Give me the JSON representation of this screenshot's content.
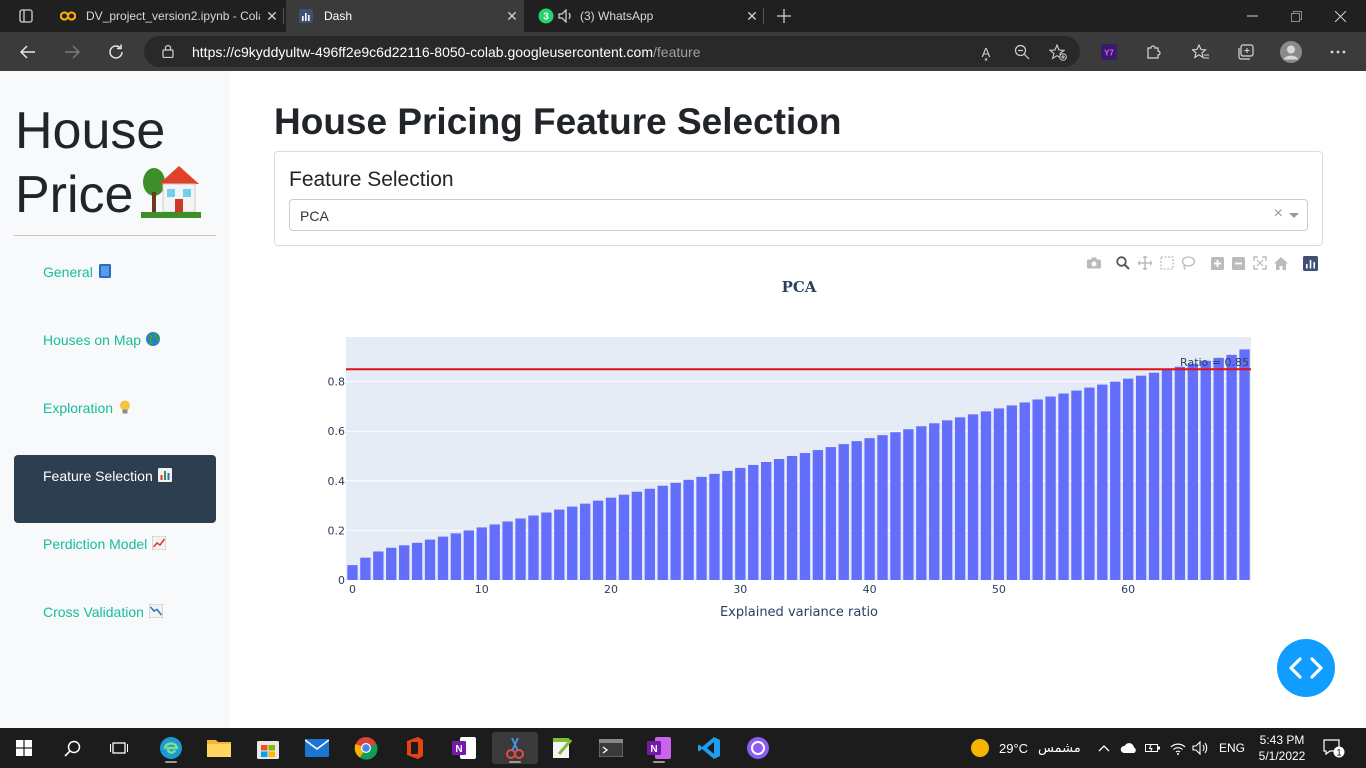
{
  "browser": {
    "tabs": [
      {
        "label": "DV_project_version2.ipynb - Cola",
        "icon": "colab-icon",
        "color": "#f9ab00"
      },
      {
        "label": "Dash",
        "icon": "dash-icon",
        "color": "#6f88c7"
      },
      {
        "label": "(3) WhatsApp",
        "icon": "whatsapp-icon",
        "color": "#25d366",
        "badge": "3"
      }
    ],
    "url_host": "https://c9kyddyultw-496ff2e9c6d22116-8050-colab.googleusercontent.com",
    "url_path": "/feature",
    "read_aloud": "A͓"
  },
  "sidebar": {
    "brand_line1": "House",
    "brand_line2": "Price",
    "items": [
      {
        "label": "General"
      },
      {
        "label": "Houses on Map"
      },
      {
        "label": "Exploration"
      },
      {
        "label": "Feature Selection",
        "active": true
      },
      {
        "label": "Perdiction Model"
      },
      {
        "label": "Cross Validation"
      }
    ]
  },
  "main": {
    "title": "House Pricing Feature Selection",
    "card_title": "Feature Selection",
    "dropdown_value": "PCA",
    "dropdown_clear": "×"
  },
  "chart_data": {
    "type": "bar",
    "title": "PCA",
    "xlabel": "Explained variance ratio",
    "ylabel": "",
    "xlim": [
      -0.5,
      69.5
    ],
    "ylim": [
      0,
      0.98
    ],
    "xticks": [
      0,
      10,
      20,
      30,
      40,
      50,
      60
    ],
    "yticks": [
      0,
      0.2,
      0.4,
      0.6,
      0.8
    ],
    "ytick_labels": [
      "0",
      "0.2",
      "0.4",
      "0.6",
      "0.8"
    ],
    "bar_color": "#636efa",
    "plot_bg": "#e5ecf6",
    "values": [
      0.06,
      0.09,
      0.115,
      0.13,
      0.14,
      0.15,
      0.163,
      0.175,
      0.188,
      0.2,
      0.212,
      0.224,
      0.236,
      0.248,
      0.26,
      0.272,
      0.284,
      0.296,
      0.308,
      0.32,
      0.332,
      0.344,
      0.356,
      0.368,
      0.38,
      0.392,
      0.404,
      0.416,
      0.428,
      0.44,
      0.452,
      0.464,
      0.476,
      0.488,
      0.5,
      0.512,
      0.524,
      0.536,
      0.548,
      0.56,
      0.572,
      0.584,
      0.596,
      0.608,
      0.62,
      0.632,
      0.644,
      0.656,
      0.668,
      0.68,
      0.692,
      0.704,
      0.716,
      0.728,
      0.74,
      0.752,
      0.764,
      0.776,
      0.788,
      0.8,
      0.812,
      0.824,
      0.836,
      0.848,
      0.86,
      0.872,
      0.884,
      0.896,
      0.908,
      0.93
    ],
    "hline": {
      "y": 0.85,
      "color": "#e0101d",
      "label": "Ratio = 0.85"
    }
  },
  "taskbar": {
    "weather_temp": "29°C",
    "weather_text": "مشمس",
    "lang": "ENG",
    "time": "5:43 PM",
    "date": "5/1/2022",
    "notif_count": "1"
  }
}
